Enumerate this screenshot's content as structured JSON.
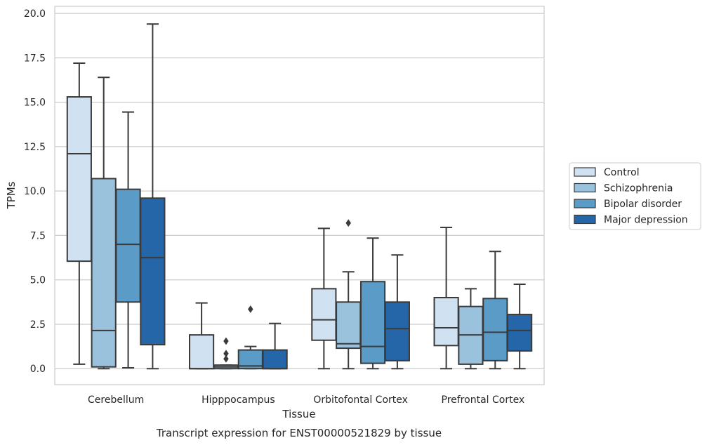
{
  "chart_data": {
    "type": "box",
    "title": "",
    "caption": "Transcript expression for ENST00000521829 by tissue",
    "xlabel": "Tissue",
    "ylabel": "TPMs",
    "ylim": [
      -0.9,
      20.4
    ],
    "yticks": [
      "0.0",
      "2.5",
      "5.0",
      "7.5",
      "10.0",
      "12.5",
      "15.0",
      "17.5",
      "20.0"
    ],
    "ytick_values": [
      0,
      2.5,
      5,
      7.5,
      10,
      12.5,
      15,
      17.5,
      20
    ],
    "grid": "horizontal",
    "legend_position": "right",
    "categories": [
      "Cerebellum",
      "Hipppocampus",
      "Orbitofontal Cortex",
      "Prefrontal Cortex"
    ],
    "series": [
      {
        "name": "Control",
        "color": "#d0e1f2",
        "boxes": [
          {
            "whisker_low": 0.25,
            "q1": 6.05,
            "median": 12.1,
            "q3": 15.3,
            "whisker_high": 17.2,
            "outliers": []
          },
          {
            "whisker_low": 0.0,
            "q1": 0.0,
            "median": 0.0,
            "q3": 1.9,
            "whisker_high": 3.7,
            "outliers": []
          },
          {
            "whisker_low": 0.0,
            "q1": 1.6,
            "median": 2.75,
            "q3": 4.5,
            "whisker_high": 7.9,
            "outliers": []
          },
          {
            "whisker_low": 0.0,
            "q1": 1.3,
            "median": 2.3,
            "q3": 4.0,
            "whisker_high": 7.95,
            "outliers": []
          }
        ]
      },
      {
        "name": "Schizophrenia",
        "color": "#9ac2dd",
        "boxes": [
          {
            "whisker_low": 0.0,
            "q1": 0.1,
            "median": 2.15,
            "q3": 10.7,
            "whisker_high": 16.4,
            "outliers": []
          },
          {
            "whisker_low": 0.0,
            "q1": 0.0,
            "median": 0.1,
            "q3": 0.2,
            "whisker_high": 0.2,
            "outliers": [
              0.55,
              0.85,
              1.55
            ]
          },
          {
            "whisker_low": 0.0,
            "q1": 1.15,
            "median": 1.4,
            "q3": 3.75,
            "whisker_high": 5.45,
            "outliers": [
              8.2
            ]
          },
          {
            "whisker_low": 0.0,
            "q1": 0.25,
            "median": 1.9,
            "q3": 3.5,
            "whisker_high": 4.5,
            "outliers": []
          }
        ]
      },
      {
        "name": "Bipolar disorder",
        "color": "#5a9bc8",
        "boxes": [
          {
            "whisker_low": 0.05,
            "q1": 3.75,
            "median": 7.0,
            "q3": 10.1,
            "whisker_high": 14.45,
            "outliers": []
          },
          {
            "whisker_low": 0.0,
            "q1": 0.0,
            "median": 0.15,
            "q3": 1.05,
            "whisker_high": 1.25,
            "outliers": [
              3.35
            ]
          },
          {
            "whisker_low": 0.0,
            "q1": 0.3,
            "median": 1.25,
            "q3": 4.9,
            "whisker_high": 7.35,
            "outliers": []
          },
          {
            "whisker_low": 0.0,
            "q1": 0.45,
            "median": 2.05,
            "q3": 3.95,
            "whisker_high": 6.6,
            "outliers": []
          }
        ]
      },
      {
        "name": "Major depression",
        "color": "#2566a8",
        "boxes": [
          {
            "whisker_low": 0.0,
            "q1": 1.35,
            "median": 6.25,
            "q3": 9.6,
            "whisker_high": 19.4,
            "outliers": []
          },
          {
            "whisker_low": 0.0,
            "q1": 0.0,
            "median": 0.0,
            "q3": 1.05,
            "whisker_high": 2.55,
            "outliers": []
          },
          {
            "whisker_low": 0.0,
            "q1": 0.45,
            "median": 2.25,
            "q3": 3.75,
            "whisker_high": 6.4,
            "outliers": []
          },
          {
            "whisker_low": 0.0,
            "q1": 1.0,
            "median": 2.15,
            "q3": 3.05,
            "whisker_high": 4.75,
            "outliers": []
          }
        ]
      }
    ]
  },
  "style": {
    "edge_color": "#3a3a3a",
    "grid_color": "#cccccc",
    "frame_color": "#cccccc"
  }
}
